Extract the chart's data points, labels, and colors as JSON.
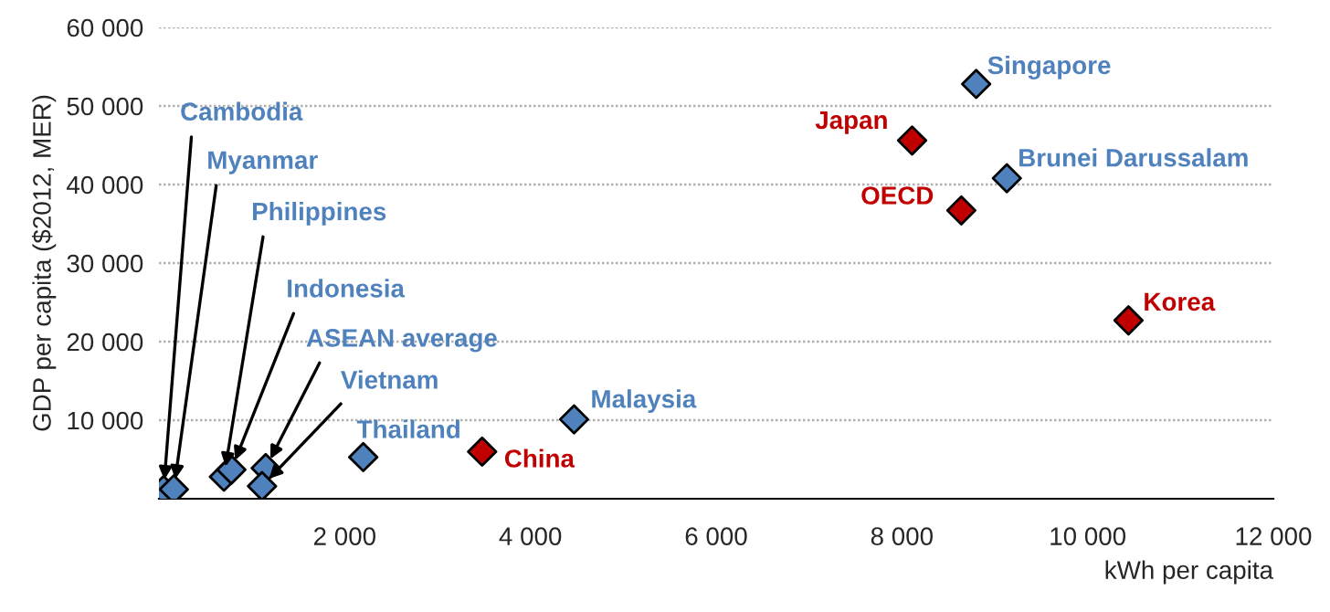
{
  "chart_data": {
    "type": "scatter",
    "xlabel": "kWh per capita",
    "ylabel": "GDP per capita ($2012, MER)",
    "series": [
      {
        "color": "#4f81bd",
        "x": [
          50,
          160,
          700,
          780,
          1150,
          1110,
          2200,
          4470,
          8800,
          9130
        ],
        "values": [
          1100,
          1200,
          2800,
          3700,
          3900,
          1600,
          5300,
          10100,
          52800,
          40800
        ]
      },
      {
        "color": "#c00000",
        "x": [
          3480,
          8110,
          8640,
          10440
        ],
        "values": [
          6000,
          45600,
          36700,
          22700
        ]
      }
    ],
    "annotations": [
      {
        "text": "Cambodia",
        "x": 50,
        "y": 1100
      },
      {
        "text": "Myanmar",
        "x": 160,
        "y": 1200
      },
      {
        "text": "Philippines",
        "x": 700,
        "y": 2800
      },
      {
        "text": "Indonesia",
        "x": 780,
        "y": 3700
      },
      {
        "text": "ASEAN average",
        "x": 1150,
        "y": 3900
      },
      {
        "text": "Vietnam",
        "x": 1110,
        "y": 1600
      },
      {
        "text": "Thailand",
        "x": 2200,
        "y": 5300
      },
      {
        "text": "Malaysia",
        "x": 4470,
        "y": 10100
      },
      {
        "text": "China",
        "x": 3480,
        "y": 6000
      },
      {
        "text": "Singapore",
        "x": 8800,
        "y": 52800
      },
      {
        "text": "Japan",
        "x": 8110,
        "y": 45600
      },
      {
        "text": "Brunei Darussalam",
        "x": 9130,
        "y": 40800
      },
      {
        "text": "OECD",
        "x": 8640,
        "y": 36700
      },
      {
        "text": "Korea",
        "x": 10440,
        "y": 22700
      }
    ],
    "xlim": [
      0,
      12000
    ],
    "xticks": [
      {
        "value": 2000,
        "label": "2 000"
      },
      {
        "value": 4000,
        "label": "4 000"
      },
      {
        "value": 6000,
        "label": "6 000"
      },
      {
        "value": 8000,
        "label": "8 000"
      },
      {
        "value": 10000,
        "label": "10 000"
      },
      {
        "value": 12000,
        "label": "12 000"
      }
    ],
    "ylim": [
      0,
      60000
    ],
    "yticks": [
      {
        "value": 10000,
        "label": "10 000"
      },
      {
        "value": 20000,
        "label": "20 000"
      },
      {
        "value": 30000,
        "label": "30 000"
      },
      {
        "value": 40000,
        "label": "40 000"
      },
      {
        "value": 50000,
        "label": "50 000"
      },
      {
        "value": 60000,
        "label": "60 000"
      }
    ],
    "grid": "y",
    "marker": "diamond"
  }
}
